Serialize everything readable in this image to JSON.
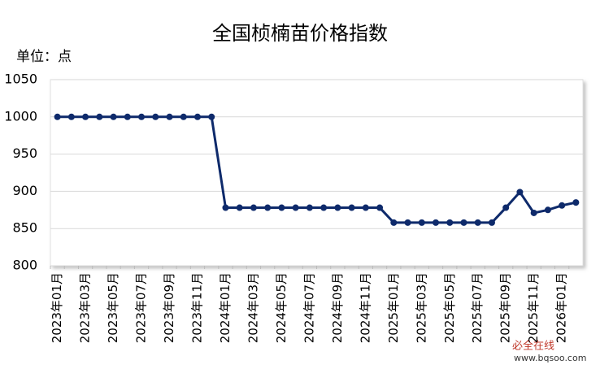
{
  "chart_data": {
    "type": "line",
    "title": "全国桢楠苗价格指数",
    "unit_label": "单位：点",
    "categories": [
      "2023年01月",
      null,
      "2023年03月",
      null,
      "2023年05月",
      null,
      "2023年07月",
      null,
      "2023年09月",
      null,
      "2023年11月",
      null,
      "2024年01月",
      null,
      "2024年03月",
      null,
      "2024年05月",
      null,
      "2024年07月",
      null,
      "2024年09月",
      null,
      "2024年11月",
      null,
      "2025年01月",
      null,
      "2025年03月",
      null,
      "2025年05月",
      null,
      "2025年07月",
      null,
      "2025年09月",
      null,
      "2025年11月",
      null,
      "2026年01月",
      null
    ],
    "series": [
      {
        "name": "全国桢楠苗价格指数",
        "color": "#0e2a6b",
        "values": [
          1000,
          1000,
          1000,
          1000,
          1000,
          1000,
          1000,
          1000,
          1000,
          1000,
          1000,
          1000,
          878,
          878,
          878,
          878,
          878,
          878,
          878,
          878,
          878,
          878,
          878,
          878,
          858,
          858,
          858,
          858,
          858,
          858,
          858,
          858,
          878,
          899,
          871,
          875,
          881,
          885
        ]
      }
    ],
    "ylim": [
      800,
      1050
    ],
    "yticks": [
      800,
      850,
      900,
      950,
      1000,
      1050
    ],
    "grid": true,
    "watermark": "必全在线",
    "watermark_url": "www.bqsoo.com"
  }
}
